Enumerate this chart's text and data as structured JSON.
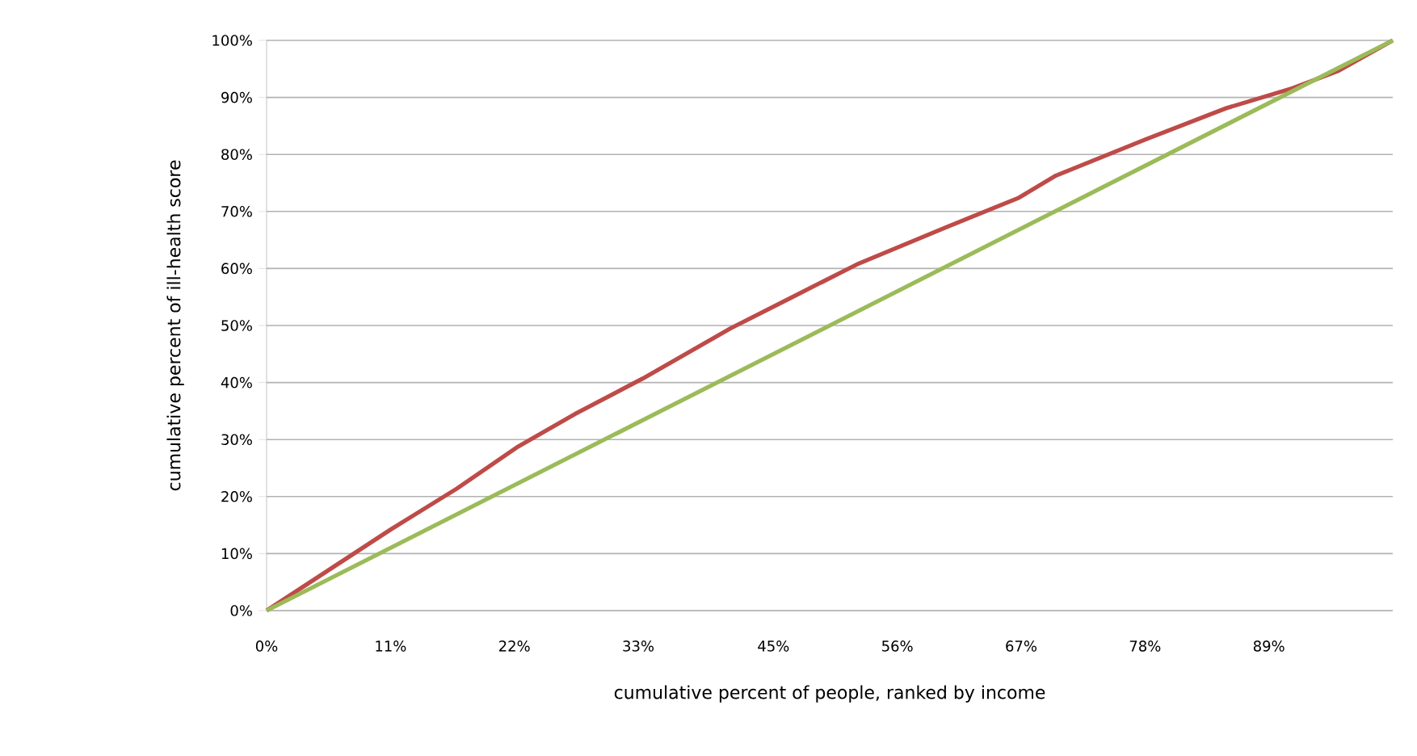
{
  "chart_data": {
    "type": "line",
    "xlabel": "cumulative percent of people, ranked by income",
    "ylabel": "cumulative percent of ill-health score",
    "xlim": [
      0,
      100
    ],
    "ylim": [
      0,
      100
    ],
    "xticks": [
      {
        "value": 0,
        "label": "0%"
      },
      {
        "value": 11,
        "label": "11%"
      },
      {
        "value": 22,
        "label": "22%"
      },
      {
        "value": 33,
        "label": "33%"
      },
      {
        "value": 45,
        "label": "45%"
      },
      {
        "value": 56,
        "label": "56%"
      },
      {
        "value": 67,
        "label": "67%"
      },
      {
        "value": 78,
        "label": "78%"
      },
      {
        "value": 89,
        "label": "89%"
      }
    ],
    "yticks": [
      {
        "value": 0,
        "label": "0%"
      },
      {
        "value": 10,
        "label": "10%"
      },
      {
        "value": 20,
        "label": "20%"
      },
      {
        "value": 30,
        "label": "30%"
      },
      {
        "value": 40,
        "label": "40%"
      },
      {
        "value": 50,
        "label": "50%"
      },
      {
        "value": 60,
        "label": "60%"
      },
      {
        "value": 70,
        "label": "70%"
      },
      {
        "value": 80,
        "label": "80%"
      },
      {
        "value": 90,
        "label": "90%"
      },
      {
        "value": 100,
        "label": "100%"
      }
    ],
    "grid": "y",
    "legend": false,
    "marker": "none",
    "line_style": "solid",
    "series": [
      {
        "color": "#be4b48",
        "x": [
          0,
          4.5,
          11,
          16.9,
          22.2,
          27.4,
          33.4,
          41.2,
          46.5,
          52.4,
          60.3,
          66.8,
          70.1,
          78,
          85.2,
          91.1,
          95.1,
          100
        ],
        "values": [
          0,
          5.8,
          14.2,
          21.4,
          28.6,
          34.5,
          40.7,
          49.5,
          54.8,
          60.7,
          67.2,
          72.4,
          76.3,
          82.6,
          88.1,
          91.6,
          94.6,
          100
        ]
      },
      {
        "color": "#9bbb59",
        "x": [
          0,
          100
        ],
        "values": [
          0,
          100
        ]
      }
    ]
  }
}
